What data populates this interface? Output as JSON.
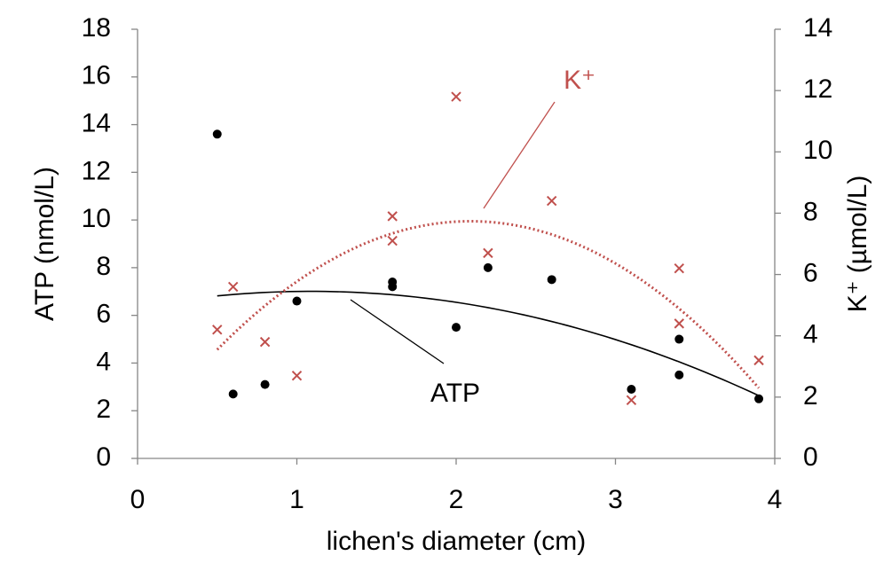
{
  "chart_data": {
    "type": "scatter",
    "x_label": "lichen's diameter (cm)",
    "y_label": "ATP (nmol/L)",
    "y2_label": "K⁺ (µmol/L)",
    "xlim": [
      0,
      4
    ],
    "xticks": [
      0,
      1,
      2,
      3,
      4
    ],
    "ylim": [
      0,
      18
    ],
    "yticks": [
      0,
      2,
      4,
      6,
      8,
      10,
      12,
      14,
      16,
      18
    ],
    "y2lim": [
      0,
      14
    ],
    "y2ticks": [
      0,
      2,
      4,
      6,
      8,
      10,
      12,
      14
    ],
    "trendline": "polynomial",
    "series": [
      {
        "name": "ATP",
        "color": "#000000",
        "marker": "circle",
        "x": [
          0.5,
          0.6,
          0.8,
          1.0,
          1.6,
          1.6,
          2.0,
          2.2,
          2.6,
          3.1,
          3.4,
          3.4,
          3.9
        ],
        "values": [
          13.6,
          2.7,
          3.1,
          6.6,
          7.4,
          7.2,
          5.5,
          8.0,
          7.5,
          2.9,
          5.0,
          3.5,
          2.5
        ]
      },
      {
        "name": "K⁺",
        "color": "#c0504d",
        "marker": "cross",
        "axis": "y2",
        "x": [
          0.5,
          0.6,
          0.8,
          1.0,
          1.6,
          1.6,
          2.0,
          2.2,
          2.6,
          3.1,
          3.4,
          3.4,
          3.9
        ],
        "values": [
          4.2,
          5.6,
          3.8,
          2.7,
          7.9,
          7.1,
          11.8,
          6.7,
          8.4,
          1.9,
          6.2,
          4.4,
          3.2
        ]
      }
    ]
  }
}
